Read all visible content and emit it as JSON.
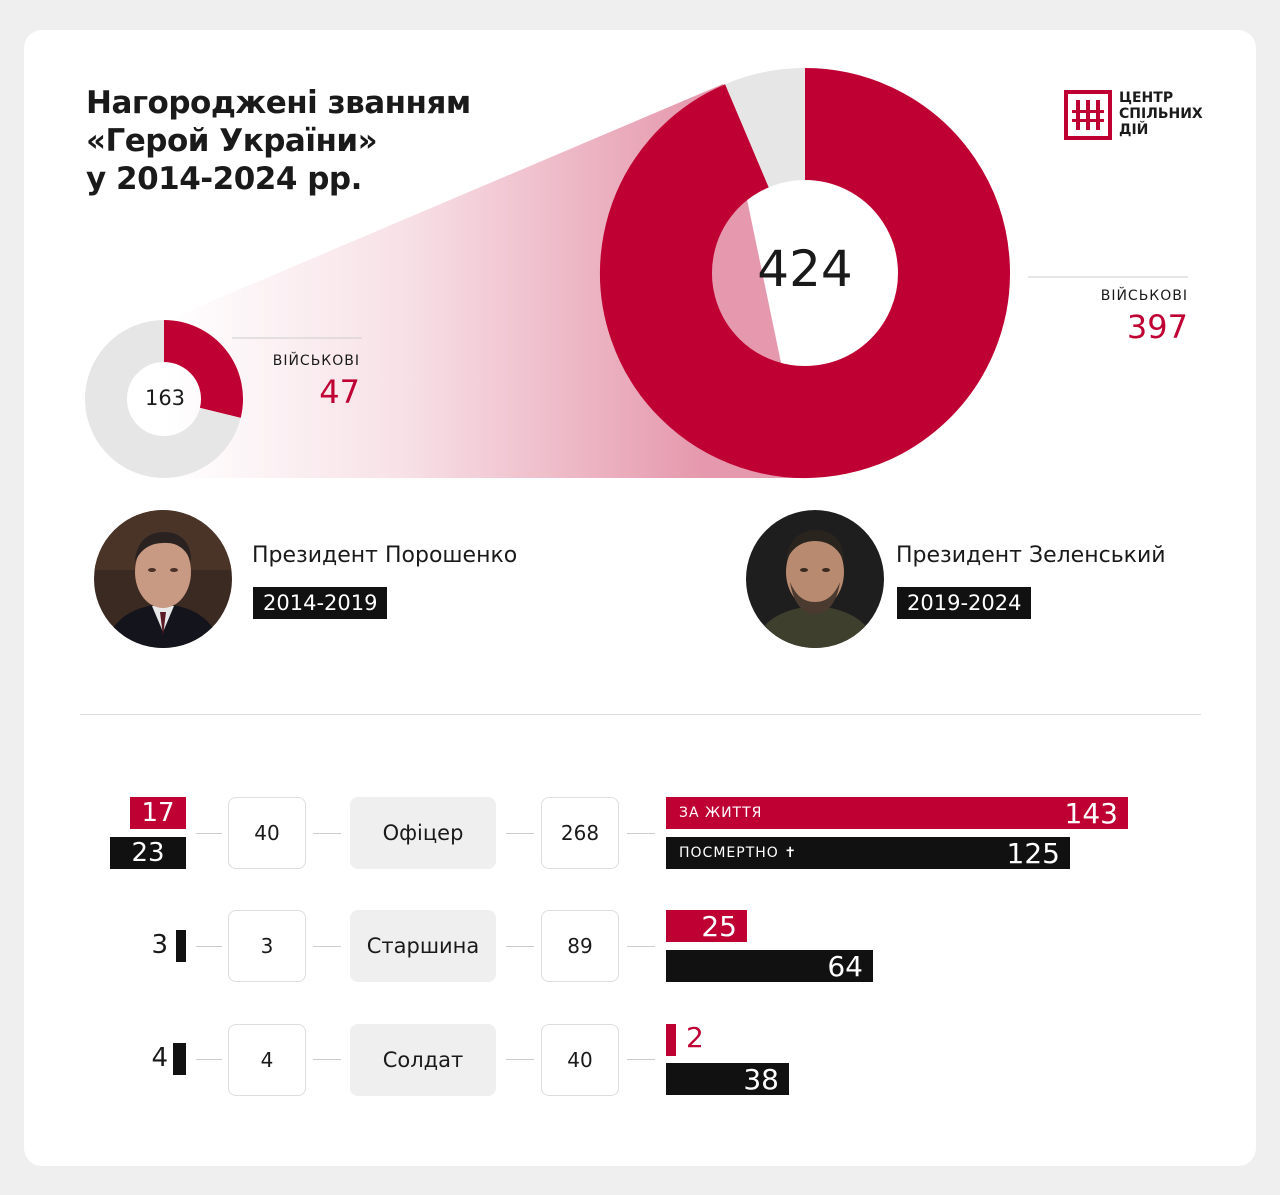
{
  "title": {
    "line1": "Нагороджені званням",
    "line2": "«Герой України»",
    "line3": "у 2014-2024 рр."
  },
  "logo": {
    "line1": "ЦЕНТР",
    "line2": "СПІЛЬНИХ",
    "line3": "ДІЙ"
  },
  "colors": {
    "accent": "#bf0033",
    "dark": "#111111",
    "neutral": "#e6e6e6"
  },
  "presidents": [
    {
      "name": "Президент Порошенко",
      "term": "2014-2019",
      "avatar_icon": "poroshenko-portrait"
    },
    {
      "name": "Президент Зеленський",
      "term": "2019-2024",
      "avatar_icon": "zelensky-portrait"
    }
  ],
  "chart_data": [
    {
      "type": "pie",
      "variant": "donut",
      "center_label": "163",
      "slices": [
        {
          "label": "ВІЙСЬКОВІ",
          "value": 47,
          "color": "#bf0033"
        },
        {
          "label": "",
          "value": 116,
          "color": "#e6e6e6"
        }
      ]
    },
    {
      "type": "pie",
      "variant": "donut",
      "center_label": "424",
      "slices": [
        {
          "label": "ВІЙСЬКОВІ",
          "value": 397,
          "color": "#bf0033"
        },
        {
          "label": "",
          "value": 27,
          "color": "#e6e6e6"
        }
      ]
    },
    {
      "type": "bar",
      "orientation": "horizontal",
      "categories": [
        "Офіцер",
        "Старшина",
        "Солдат"
      ],
      "poroshenko": {
        "alive": [
          17,
          0,
          0
        ],
        "posthumous": [
          23,
          3,
          4
        ],
        "total": [
          "40",
          "3",
          "4"
        ]
      },
      "zelensky": {
        "total": [
          "268",
          "89",
          "40"
        ],
        "series": [
          {
            "name": "ЗА ЖИТТЯ",
            "values": [
              143,
              25,
              2
            ],
            "color": "#bf0033"
          },
          {
            "name": "ПОСМЕРТНО ✝",
            "values": [
              125,
              64,
              38
            ],
            "color": "#111111"
          }
        ]
      },
      "xlim": [
        0,
        143
      ]
    }
  ]
}
